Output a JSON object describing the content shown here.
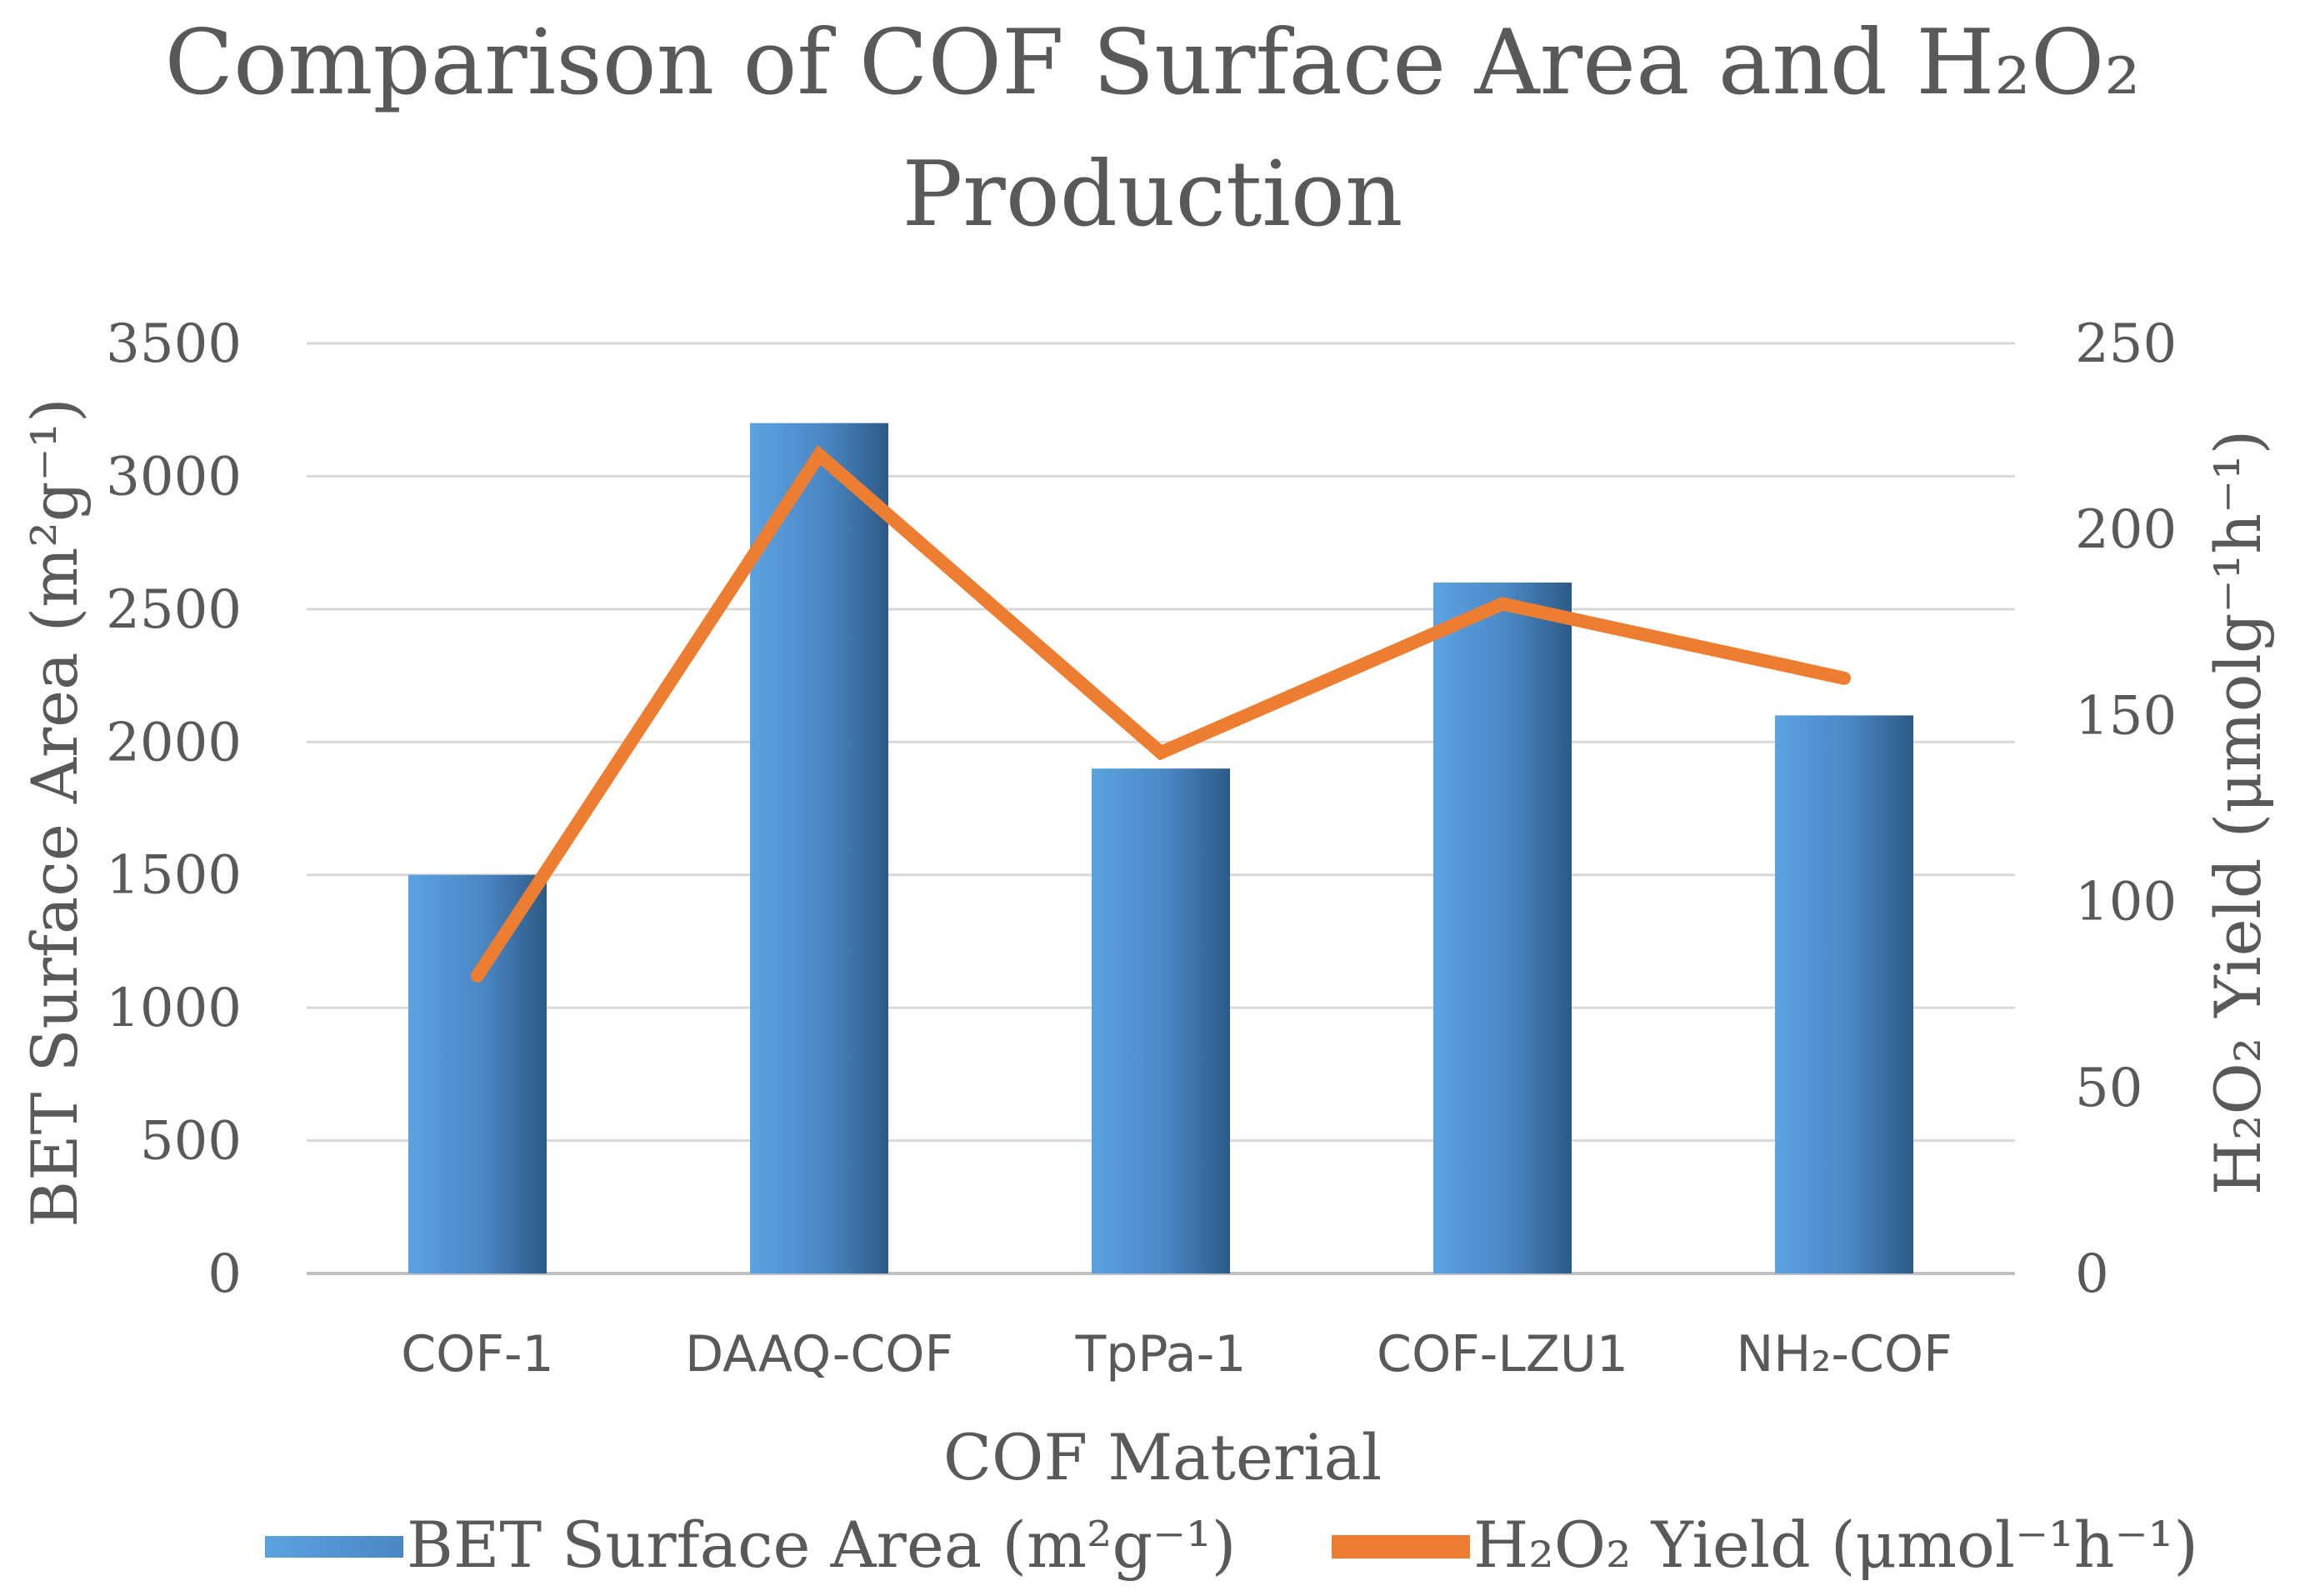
{
  "chart_data": {
    "type": "bar+line",
    "title": "Comparison of COF Surface Area and H₂O₂ Production",
    "title_line1": "Comparison of COF Surface Area and H₂O₂",
    "title_line2": "Production",
    "categories": [
      "COF-1",
      "DAAQ-COF",
      "TpPa-1",
      "COF-LZU1",
      "NH₂-COF"
    ],
    "series": [
      {
        "name": "BET Surface Area (m²g⁻¹)",
        "type": "bar",
        "axis": "left",
        "values": [
          1500,
          3200,
          1900,
          2600,
          2100
        ]
      },
      {
        "name": "H₂O₂ Yield (μmol⁻¹h⁻¹)",
        "type": "line",
        "axis": "right",
        "values": [
          80,
          220,
          140,
          180,
          160
        ]
      }
    ],
    "xlabel": "COF Material",
    "ylabel_left": "BET Surface Area (m²g⁻¹)",
    "ylabel_right": "H₂O₂ Yield (μmolg⁻¹h⁻¹)",
    "ylim_left": [
      0,
      3500
    ],
    "ylim_right": [
      0,
      250
    ],
    "yticks_left": [
      0,
      500,
      1000,
      1500,
      2000,
      2500,
      3000,
      3500
    ],
    "yticks_right": [
      0,
      50,
      100,
      150,
      200,
      250
    ],
    "grid": true,
    "legend_position": "bottom",
    "colors": {
      "bar": "#5B9BD5",
      "bar_dark": "#2F5C8A",
      "line": "#ED7D31",
      "grid": "#D9D9D9",
      "text": "#595959"
    }
  },
  "legend": {
    "bar_label": "BET Surface Area (m²g⁻¹)",
    "line_label": "H₂O₂ Yield (μmol⁻¹h⁻¹)"
  }
}
